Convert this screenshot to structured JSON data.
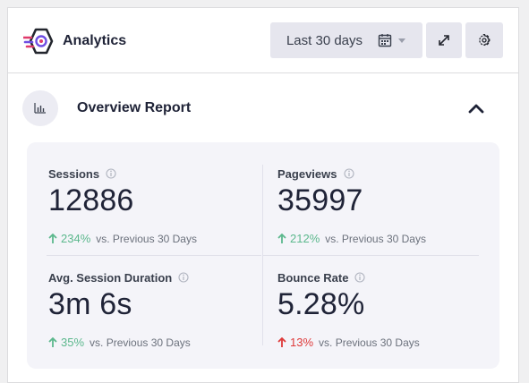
{
  "header": {
    "title": "Analytics",
    "date_range_label": "Last 30 days"
  },
  "report": {
    "title": "Overview Report"
  },
  "stats": [
    {
      "name": "Sessions",
      "value": "12886",
      "change": "234%",
      "direction": "up",
      "comparison": "vs. Previous 30 Days"
    },
    {
      "name": "Pageviews",
      "value": "35997",
      "change": "212%",
      "direction": "up",
      "comparison": "vs. Previous 30 Days"
    },
    {
      "name": "Avg. Session Duration",
      "value": "3m 6s",
      "change": "35%",
      "direction": "up",
      "comparison": "vs. Previous 30 Days"
    },
    {
      "name": "Bounce Rate",
      "value": "5.28%",
      "change": "13%",
      "direction": "up",
      "trend_color": "red",
      "comparison": "vs. Previous 30 Days"
    }
  ],
  "colors": {
    "positive": "#5cb88d",
    "negative": "#de3a3a",
    "brand_purple": "#6f4ee2",
    "brand_pink": "#e03a6b"
  }
}
